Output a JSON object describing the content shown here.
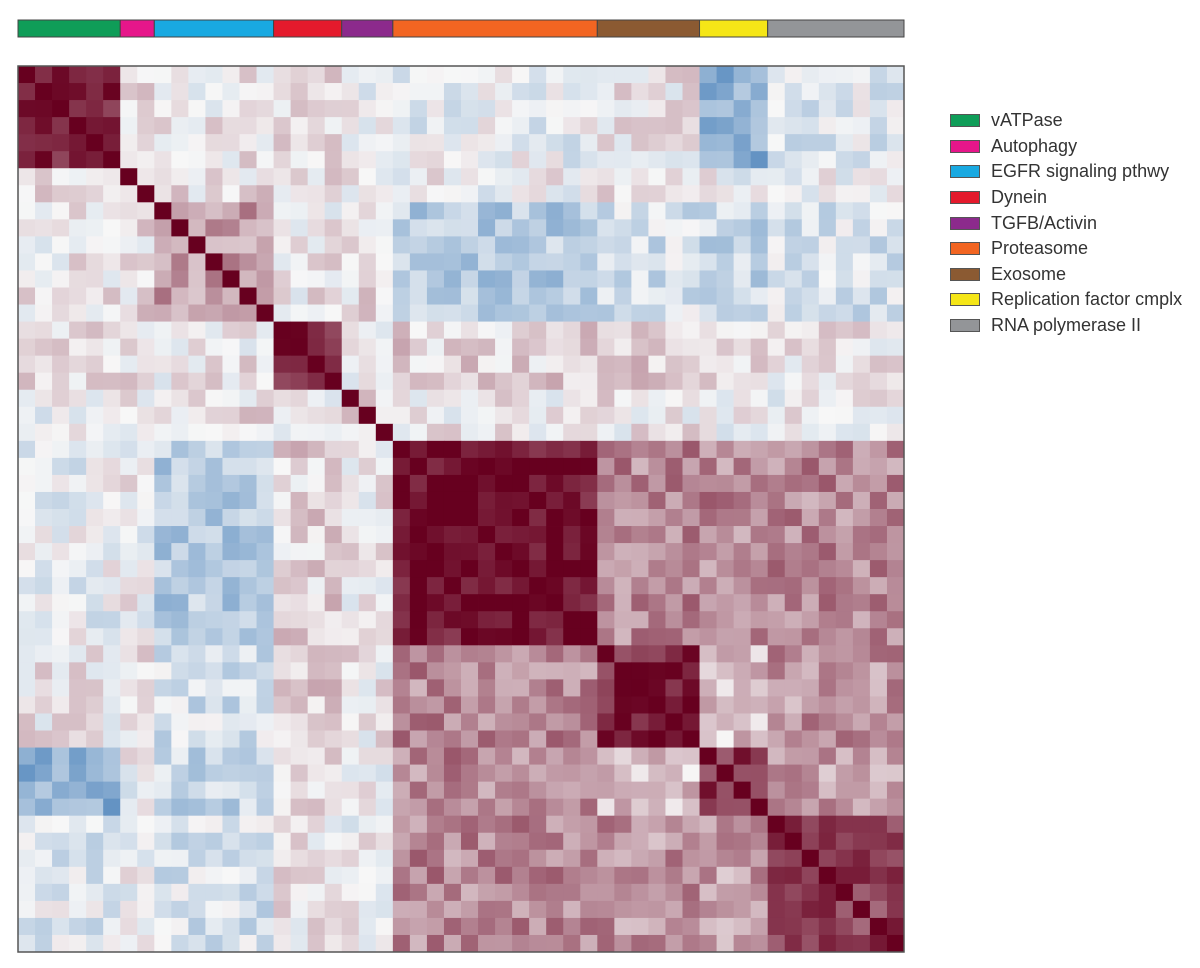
{
  "chart_data": {
    "type": "heatmap",
    "title": "",
    "xlabel": "",
    "ylabel": "",
    "n": 52,
    "value_range": [
      -1,
      1
    ],
    "colormap": [
      "#2166ac",
      "#f7f7f7",
      "#67001f"
    ],
    "groups": [
      {
        "name": "vATPase",
        "size": 6,
        "color": "#0f9d58"
      },
      {
        "name": "Autophagy",
        "size": 2,
        "color": "#e6168a"
      },
      {
        "name": "EGFR signaling pthwy",
        "size": 7,
        "color": "#19a9e1"
      },
      {
        "name": "Dynein",
        "size": 4,
        "color": "#e41a2c"
      },
      {
        "name": "TGFB/Activin",
        "size": 3,
        "color": "#8c2a8c"
      },
      {
        "name": "Proteasome",
        "size": 12,
        "color": "#f26522"
      },
      {
        "name": "Exosome",
        "size": 6,
        "color": "#8b5a32"
      },
      {
        "name": "Replication factor cmplx",
        "size": 4,
        "color": "#f5e617"
      },
      {
        "name": "RNA polymerase II",
        "size": 8,
        "color": "#939598"
      }
    ],
    "diagonal_value": 1,
    "within_group": [
      0.8,
      0.08,
      0.35,
      0.9,
      0.1,
      0.95,
      0.85,
      0.8,
      0.75
    ],
    "between_groups": [
      [
        1,
        0.1,
        0.05,
        0.1,
        0.0,
        -0.05,
        0.05,
        -0.5,
        -0.1
      ],
      [
        0.1,
        1,
        0.1,
        0.1,
        0.05,
        0.0,
        0.05,
        0.0,
        0.0
      ],
      [
        0.05,
        0.1,
        1,
        0.05,
        0.1,
        -0.3,
        -0.15,
        -0.25,
        -0.15
      ],
      [
        0.1,
        0.1,
        0.05,
        1,
        0.05,
        0.15,
        0.15,
        0.05,
        0.05
      ],
      [
        0.0,
        0.05,
        0.1,
        0.05,
        1,
        0.05,
        0.05,
        0.0,
        0.0
      ],
      [
        -0.05,
        0.0,
        -0.3,
        0.15,
        0.05,
        1,
        0.45,
        0.45,
        0.45
      ],
      [
        0.05,
        0.05,
        -0.15,
        0.15,
        0.05,
        0.45,
        1,
        0.2,
        0.4
      ],
      [
        -0.5,
        0.0,
        -0.25,
        0.05,
        0.0,
        0.45,
        0.2,
        1,
        0.35
      ],
      [
        -0.1,
        0.0,
        -0.15,
        0.05,
        0.0,
        0.45,
        0.4,
        0.35,
        1
      ]
    ]
  }
}
